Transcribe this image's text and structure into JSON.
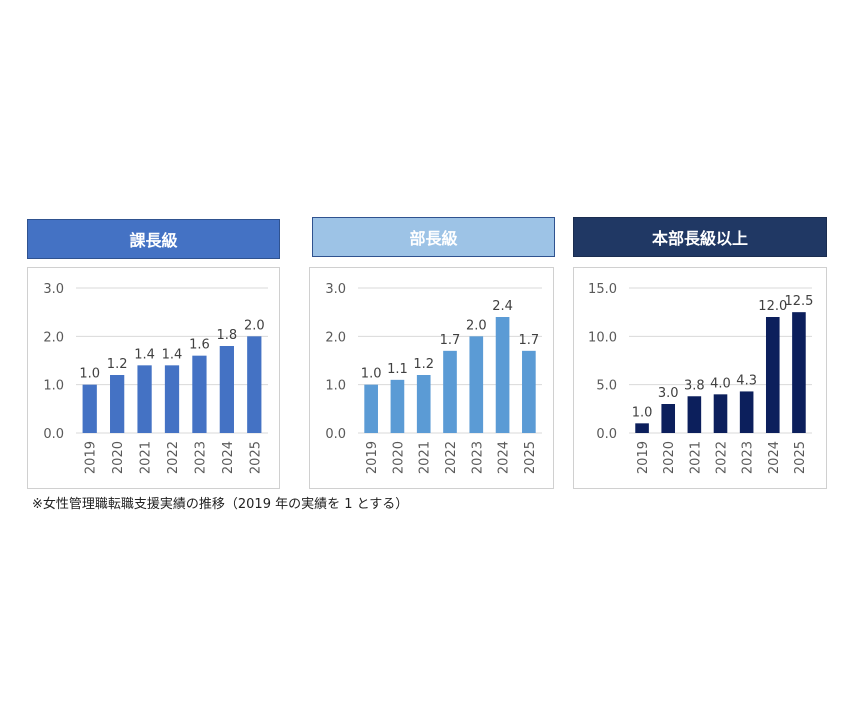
{
  "panels": [
    {
      "title": "課長級",
      "color": "#4472c4"
    },
    {
      "title": "部長級",
      "color": "#9dc3e6"
    },
    {
      "title": "本部長級以上",
      "color": "#203864"
    }
  ],
  "footnote": "※女性管理職転職支援実績の推移（2019 年の実績を 1 とする）",
  "chart_data": [
    {
      "type": "bar",
      "title": "課長級",
      "categories": [
        "2019",
        "2020",
        "2021",
        "2022",
        "2023",
        "2024",
        "2025"
      ],
      "values": [
        1.0,
        1.2,
        1.4,
        1.4,
        1.6,
        1.8,
        2.0
      ],
      "ylim": [
        0,
        3.0
      ],
      "yticks": [
        "0.0",
        "1.0",
        "2.0",
        "3.0"
      ],
      "bar_color": "#4472c4",
      "grid": true
    },
    {
      "type": "bar",
      "title": "部長級",
      "categories": [
        "2019",
        "2020",
        "2021",
        "2022",
        "2023",
        "2024",
        "2025"
      ],
      "values": [
        1.0,
        1.1,
        1.2,
        1.7,
        2.0,
        2.4,
        1.7
      ],
      "ylim": [
        0,
        3.0
      ],
      "yticks": [
        "0.0",
        "1.0",
        "2.0",
        "3.0"
      ],
      "bar_color": "#5b9bd5",
      "grid": true
    },
    {
      "type": "bar",
      "title": "本部長級以上",
      "categories": [
        "2019",
        "2020",
        "2021",
        "2022",
        "2023",
        "2024",
        "2025"
      ],
      "values": [
        1.0,
        3.0,
        3.8,
        4.0,
        4.3,
        12.0,
        12.5
      ],
      "ylim": [
        0,
        15.0
      ],
      "yticks": [
        "0.0",
        "5.0",
        "10.0",
        "15.0"
      ],
      "bar_color": "#0c1f5c",
      "grid": true
    }
  ]
}
